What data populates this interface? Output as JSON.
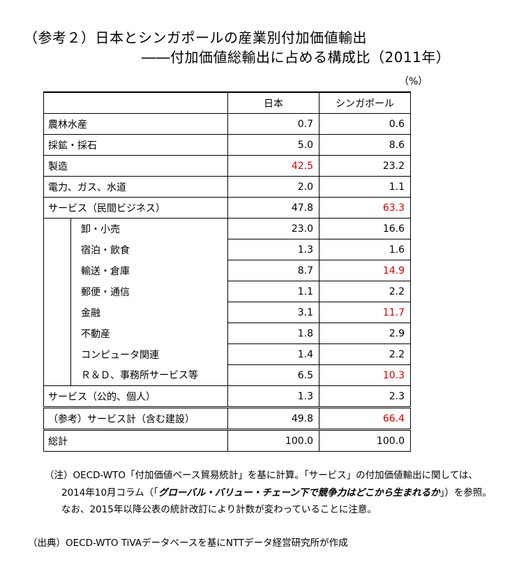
{
  "title_line1": "（参考２）日本とシンガポールの産業別付加価値輸出",
  "title_line2": "――付加価値総輸出に占める構成比（2011年）",
  "unit": "（%）",
  "columns": [
    "日本",
    "シンガポール"
  ],
  "rows": [
    {
      "label": "農林水産",
      "jp": "0.7",
      "sg": "0.6",
      "jp_red": false,
      "sg_red": false,
      "sub": false
    },
    {
      "label": "採鉱・採石",
      "jp": "5.0",
      "sg": "8.6",
      "jp_red": false,
      "sg_red": false,
      "sub": false
    },
    {
      "label": "製造",
      "jp": "42.5",
      "sg": "23.2",
      "jp_red": true,
      "sg_red": false,
      "sub": false
    },
    {
      "label": "電力、ガス、水道",
      "jp": "2.0",
      "sg": "1.1",
      "jp_red": false,
      "sg_red": false,
      "sub": false
    },
    {
      "label": "サービス（民間ビジネス）",
      "jp": "47.8",
      "sg": "63.3",
      "jp_red": false,
      "sg_red": true,
      "sub": false
    },
    {
      "label": "卸・小売",
      "jp": "23.0",
      "sg": "16.6",
      "jp_red": false,
      "sg_red": false,
      "sub": true
    },
    {
      "label": "宿泊・飲食",
      "jp": "1.3",
      "sg": "1.6",
      "jp_red": false,
      "sg_red": false,
      "sub": true
    },
    {
      "label": "輸送・倉庫",
      "jp": "8.7",
      "sg": "14.9",
      "jp_red": false,
      "sg_red": true,
      "sub": true
    },
    {
      "label": "郵便・通信",
      "jp": "1.1",
      "sg": "2.2",
      "jp_red": false,
      "sg_red": false,
      "sub": true
    },
    {
      "label": "金融",
      "jp": "3.1",
      "sg": "11.7",
      "jp_red": false,
      "sg_red": true,
      "sub": true
    },
    {
      "label": "不動産",
      "jp": "1.8",
      "sg": "2.9",
      "jp_red": false,
      "sg_red": false,
      "sub": true
    },
    {
      "label": "コンピュータ関連",
      "jp": "1.4",
      "sg": "2.2",
      "jp_red": false,
      "sg_red": false,
      "sub": true
    },
    {
      "label": "Ｒ＆Ｄ、事務所サービス等",
      "jp": "6.5",
      "sg": "10.3",
      "jp_red": false,
      "sg_red": true,
      "sub": true
    },
    {
      "label": "サービス（公的、個人）",
      "jp": "1.3",
      "sg": "2.3",
      "jp_red": false,
      "sg_red": false,
      "sub": false
    },
    {
      "label": "（参考）サービス計（含む建設）",
      "jp": "49.8",
      "sg": "66.4",
      "jp_red": false,
      "sg_red": true,
      "sub": false
    },
    {
      "label": "総計",
      "jp": "100.0",
      "sg": "100.0",
      "jp_red": false,
      "sg_red": false,
      "sub": false
    }
  ],
  "note": {
    "line1": "（注）OECD-WTO「付加価値ベース貿易統計」を基に計算。「サービス」の付加価値輸出に関しては、",
    "line2_pre": "2014年10月コラム（「",
    "line2_em": "グローバル・バリュー・チェーン下で競争力はどこから生まれるか",
    "line2_post": "」）を参照。",
    "line3": "なお、2015年以降公表の統計改訂により計数が変わっていることに注意。"
  },
  "source": "（出典）OECD-WTO TiVAデータベースを基にNTTデータ経営研究所が作成"
}
